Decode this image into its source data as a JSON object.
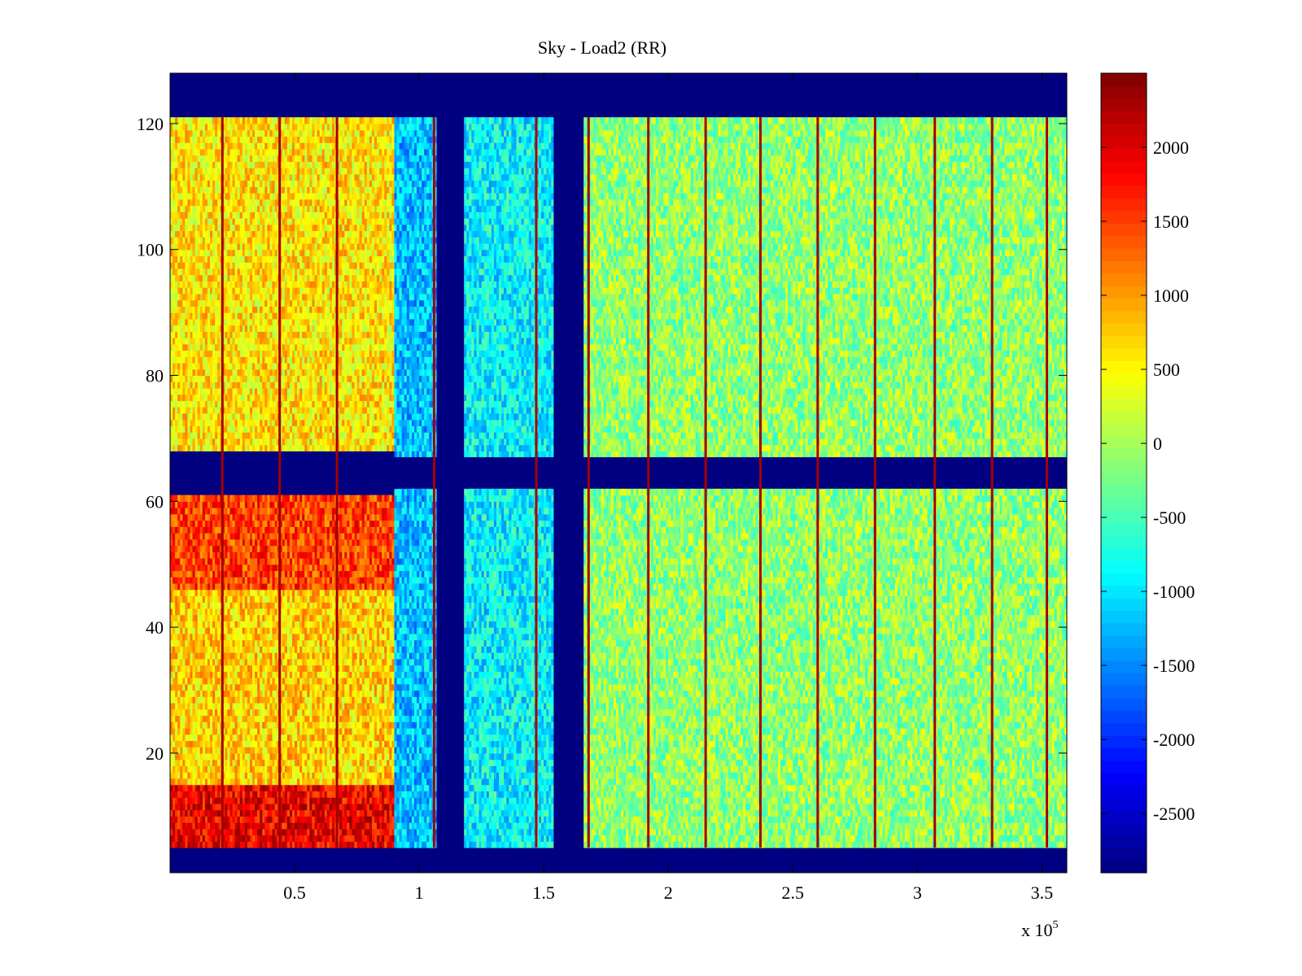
{
  "chart_data": {
    "type": "heatmap",
    "title": "Sky - Load2 (RR)",
    "xlabel": "",
    "ylabel": "",
    "x_multiplier_label": {
      "base": "x 10",
      "exponent": "5"
    },
    "xlim": [
      0,
      3.6
    ],
    "ylim": [
      1,
      128
    ],
    "x_ticks": [
      0.5,
      1,
      1.5,
      2,
      2.5,
      3,
      3.5
    ],
    "x_tick_labels": [
      "0.5",
      "1",
      "1.5",
      "2",
      "2.5",
      "3",
      "3.5"
    ],
    "y_ticks": [
      20,
      40,
      60,
      80,
      100,
      120
    ],
    "y_tick_labels": [
      "20",
      "40",
      "60",
      "80",
      "100",
      "120"
    ],
    "colorbar": {
      "colormap": "jet",
      "clim": [
        -2900,
        2500
      ],
      "ticks": [
        2000,
        1500,
        1000,
        500,
        0,
        -500,
        -1000,
        -1500,
        -2000,
        -2500
      ],
      "tick_labels": [
        "2000",
        "1500",
        "1000",
        "500",
        "0",
        "-500",
        "-1000",
        "-1500",
        "-2000",
        "-2500"
      ]
    },
    "masked_value": -2900,
    "masked_row_bands": [
      [
        1,
        4
      ],
      [
        62,
        67
      ],
      [
        122,
        128
      ]
    ],
    "masked_column_bands": [
      [
        1.07,
        1.18
      ],
      [
        1.54,
        1.66
      ]
    ],
    "column_regions": [
      {
        "x": [
          0,
          0.9
        ],
        "rows": [
          5,
          15
        ],
        "mean": 1900
      },
      {
        "x": [
          0,
          0.9
        ],
        "rows": [
          15,
          46
        ],
        "mean": 700
      },
      {
        "x": [
          0,
          0.9
        ],
        "rows": [
          46,
          61
        ],
        "mean": 1500
      },
      {
        "x": [
          0,
          0.9
        ],
        "rows": [
          68,
          121
        ],
        "mean": 600
      },
      {
        "x": [
          0.9,
          1.07
        ],
        "rows": [
          5,
          121
        ],
        "mean": -1200
      },
      {
        "x": [
          1.18,
          1.54
        ],
        "rows": [
          5,
          121
        ],
        "mean": -900
      },
      {
        "x": [
          1.66,
          3.6
        ],
        "rows": [
          5,
          121
        ],
        "mean": -100
      }
    ],
    "bright_stripe_x": [
      0.21,
      0.44,
      0.67,
      1.06,
      1.47,
      1.68,
      1.92,
      2.15,
      2.37,
      2.6,
      2.83,
      3.07,
      3.3,
      3.52
    ]
  }
}
